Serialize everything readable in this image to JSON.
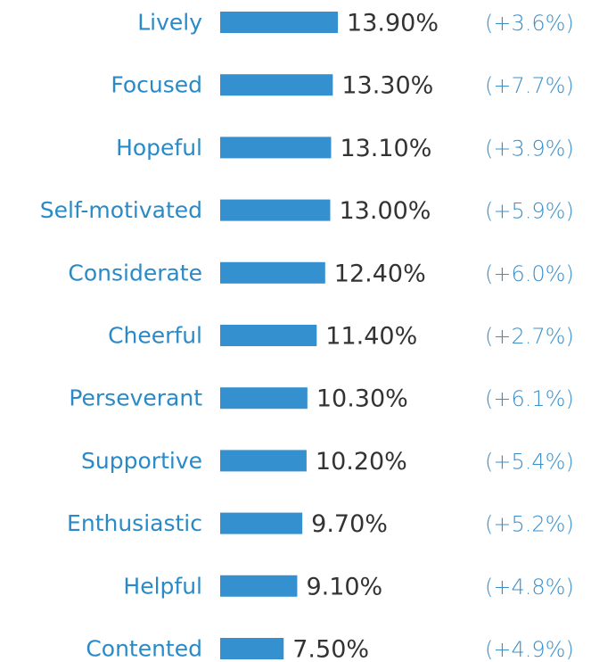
{
  "chart_data": {
    "type": "bar",
    "orientation": "horizontal",
    "color": "#3590cf",
    "categories": [
      "Lively",
      "Focused",
      "Hopeful",
      "Self-motivated",
      "Considerate",
      "Cheerful",
      "Perseverant",
      "Supportive",
      "Enthusiastic",
      "Helpful",
      "Contented"
    ],
    "values": [
      13.9,
      13.3,
      13.1,
      13.0,
      12.4,
      11.4,
      10.3,
      10.2,
      9.7,
      9.1,
      7.5
    ],
    "value_labels": [
      "13.90%",
      "13.30%",
      "13.10%",
      "13.00%",
      "12.40%",
      "11.40%",
      "10.30%",
      "10.20%",
      "9.70%",
      "9.10%",
      "7.50%"
    ],
    "changes": [
      "(+3.6%)",
      "(+7.7%)",
      "(+3.9%)",
      "(+5.9%)",
      "(+6.0%)",
      "(+2.7%)",
      "(+6.1%)",
      "(+5.4%)",
      "(+5.2%)",
      "(+4.8%)",
      "(+4.9%)"
    ]
  }
}
